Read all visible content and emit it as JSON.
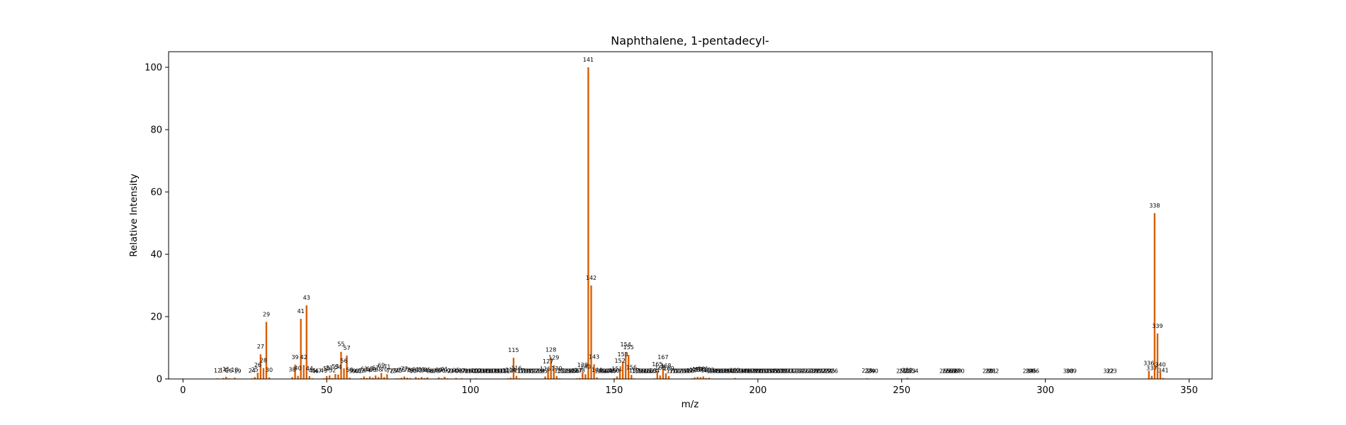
{
  "chart_data": {
    "type": "bar",
    "title": "Naphthalene, 1-pentadecyl-",
    "xlabel": "m/z",
    "ylabel": "Relative Intensity",
    "xlim": [
      -5,
      358
    ],
    "ylim": [
      0,
      105
    ],
    "xticks": [
      0,
      50,
      100,
      150,
      200,
      250,
      300,
      350
    ],
    "yticks": [
      0,
      20,
      40,
      60,
      80,
      100
    ],
    "bar_color": "#d95f02",
    "grid": false,
    "peaks": [
      {
        "x": 12,
        "y": 0.2
      },
      {
        "x": 14,
        "y": 0.3
      },
      {
        "x": 15,
        "y": 0.7
      },
      {
        "x": 16,
        "y": 0.2
      },
      {
        "x": 18,
        "y": 0.4
      },
      {
        "x": 19,
        "y": 0.1
      },
      {
        "x": 24,
        "y": 0.2
      },
      {
        "x": 25,
        "y": 0.6
      },
      {
        "x": 26,
        "y": 2.0
      },
      {
        "x": 27,
        "y": 7.9
      },
      {
        "x": 28,
        "y": 3.5
      },
      {
        "x": 29,
        "y": 18.3
      },
      {
        "x": 30,
        "y": 0.5
      },
      {
        "x": 38,
        "y": 0.6
      },
      {
        "x": 39,
        "y": 4.6
      },
      {
        "x": 40,
        "y": 1.0
      },
      {
        "x": 41,
        "y": 19.3
      },
      {
        "x": 42,
        "y": 4.5
      },
      {
        "x": 43,
        "y": 23.6
      },
      {
        "x": 44,
        "y": 0.9
      },
      {
        "x": 45,
        "y": 0.2
      },
      {
        "x": 46,
        "y": 0.1
      },
      {
        "x": 47,
        "y": 0.1
      },
      {
        "x": 49,
        "y": 0.2
      },
      {
        "x": 50,
        "y": 0.9
      },
      {
        "x": 51,
        "y": 1.1
      },
      {
        "x": 52,
        "y": 0.3
      },
      {
        "x": 53,
        "y": 1.6
      },
      {
        "x": 54,
        "y": 1.4
      },
      {
        "x": 55,
        "y": 8.7
      },
      {
        "x": 56,
        "y": 3.4
      },
      {
        "x": 57,
        "y": 7.5
      },
      {
        "x": 58,
        "y": 0.4
      },
      {
        "x": 59,
        "y": 0.1
      },
      {
        "x": 60,
        "y": 0.1
      },
      {
        "x": 61,
        "y": 0.1
      },
      {
        "x": 62,
        "y": 0.2
      },
      {
        "x": 63,
        "y": 0.8
      },
      {
        "x": 64,
        "y": 0.3
      },
      {
        "x": 65,
        "y": 0.8
      },
      {
        "x": 66,
        "y": 0.4
      },
      {
        "x": 67,
        "y": 1.1
      },
      {
        "x": 68,
        "y": 0.6
      },
      {
        "x": 69,
        "y": 1.9
      },
      {
        "x": 70,
        "y": 0.6
      },
      {
        "x": 71,
        "y": 1.5
      },
      {
        "x": 72,
        "y": 0.1
      },
      {
        "x": 73,
        "y": 0.1
      },
      {
        "x": 74,
        "y": 0.2
      },
      {
        "x": 75,
        "y": 0.2
      },
      {
        "x": 76,
        "y": 0.4
      },
      {
        "x": 77,
        "y": 0.8
      },
      {
        "x": 78,
        "y": 0.4
      },
      {
        "x": 79,
        "y": 0.3
      },
      {
        "x": 80,
        "y": 0.1
      },
      {
        "x": 81,
        "y": 0.6
      },
      {
        "x": 82,
        "y": 0.3
      },
      {
        "x": 83,
        "y": 0.6
      },
      {
        "x": 84,
        "y": 0.3
      },
      {
        "x": 85,
        "y": 0.5
      },
      {
        "x": 86,
        "y": 0.1
      },
      {
        "x": 87,
        "y": 0.1
      },
      {
        "x": 88,
        "y": 0.1
      },
      {
        "x": 89,
        "y": 0.5
      },
      {
        "x": 90,
        "y": 0.2
      },
      {
        "x": 91,
        "y": 0.7
      },
      {
        "x": 92,
        "y": 0.2
      },
      {
        "x": 93,
        "y": 0.1
      },
      {
        "x": 94,
        "y": 0.1
      },
      {
        "x": 95,
        "y": 0.3
      },
      {
        "x": 96,
        "y": 0.1
      },
      {
        "x": 97,
        "y": 0.2
      },
      {
        "x": 98,
        "y": 0.1
      },
      {
        "x": 99,
        "y": 0.1
      },
      {
        "x": 100,
        "y": 0.1
      },
      {
        "x": 101,
        "y": 0.1
      },
      {
        "x": 102,
        "y": 0.2
      },
      {
        "x": 103,
        "y": 0.1
      },
      {
        "x": 104,
        "y": 0.1
      },
      {
        "x": 105,
        "y": 0.1
      },
      {
        "x": 106,
        "y": 0.1
      },
      {
        "x": 107,
        "y": 0.1
      },
      {
        "x": 108,
        "y": 0.1
      },
      {
        "x": 109,
        "y": 0.1
      },
      {
        "x": 110,
        "y": 0.1
      },
      {
        "x": 111,
        "y": 0.1
      },
      {
        "x": 112,
        "y": 0.1
      },
      {
        "x": 113,
        "y": 0.2
      },
      {
        "x": 114,
        "y": 0.4
      },
      {
        "x": 115,
        "y": 6.8
      },
      {
        "x": 116,
        "y": 1.0
      },
      {
        "x": 117,
        "y": 0.2
      },
      {
        "x": 118,
        "y": 0.1
      },
      {
        "x": 119,
        "y": 0.1
      },
      {
        "x": 120,
        "y": 0.1
      },
      {
        "x": 121,
        "y": 0.1
      },
      {
        "x": 122,
        "y": 0.1
      },
      {
        "x": 123,
        "y": 0.1
      },
      {
        "x": 124,
        "y": 0.1
      },
      {
        "x": 125,
        "y": 0.1
      },
      {
        "x": 126,
        "y": 0.8
      },
      {
        "x": 127,
        "y": 3.2
      },
      {
        "x": 128,
        "y": 6.9
      },
      {
        "x": 129,
        "y": 4.4
      },
      {
        "x": 130,
        "y": 0.9
      },
      {
        "x": 131,
        "y": 0.2
      },
      {
        "x": 132,
        "y": 0.1
      },
      {
        "x": 133,
        "y": 0.1
      },
      {
        "x": 134,
        "y": 0.1
      },
      {
        "x": 135,
        "y": 0.1
      },
      {
        "x": 136,
        "y": 0.1
      },
      {
        "x": 137,
        "y": 0.2
      },
      {
        "x": 138,
        "y": 0.3
      },
      {
        "x": 139,
        "y": 2.1
      },
      {
        "x": 140,
        "y": 1.5
      },
      {
        "x": 141,
        "y": 100
      },
      {
        "x": 142,
        "y": 30
      },
      {
        "x": 143,
        "y": 4.7
      },
      {
        "x": 144,
        "y": 0.5
      },
      {
        "x": 145,
        "y": 0.1
      },
      {
        "x": 146,
        "y": 0.1
      },
      {
        "x": 147,
        "y": 0.1
      },
      {
        "x": 148,
        "y": 0.1
      },
      {
        "x": 149,
        "y": 0.1
      },
      {
        "x": 150,
        "y": 0.2
      },
      {
        "x": 151,
        "y": 0.8
      },
      {
        "x": 152,
        "y": 3.4
      },
      {
        "x": 153,
        "y": 5.5
      },
      {
        "x": 154,
        "y": 8.6
      },
      {
        "x": 155,
        "y": 7.7
      },
      {
        "x": 156,
        "y": 1.3
      },
      {
        "x": 157,
        "y": 0.2
      },
      {
        "x": 158,
        "y": 0.1
      },
      {
        "x": 159,
        "y": 0.1
      },
      {
        "x": 160,
        "y": 0.1
      },
      {
        "x": 161,
        "y": 0.1
      },
      {
        "x": 162,
        "y": 0.1
      },
      {
        "x": 163,
        "y": 0.1
      },
      {
        "x": 164,
        "y": 0.2
      },
      {
        "x": 165,
        "y": 2.3
      },
      {
        "x": 166,
        "y": 1.1
      },
      {
        "x": 167,
        "y": 4.6
      },
      {
        "x": 168,
        "y": 1.8
      },
      {
        "x": 169,
        "y": 0.9
      },
      {
        "x": 170,
        "y": 0.1
      },
      {
        "x": 171,
        "y": 0.1
      },
      {
        "x": 172,
        "y": 0.1
      },
      {
        "x": 173,
        "y": 0.1
      },
      {
        "x": 174,
        "y": 0.1
      },
      {
        "x": 175,
        "y": 0.1
      },
      {
        "x": 176,
        "y": 0.1
      },
      {
        "x": 177,
        "y": 0.2
      },
      {
        "x": 178,
        "y": 0.5
      },
      {
        "x": 179,
        "y": 0.7
      },
      {
        "x": 180,
        "y": 0.6
      },
      {
        "x": 181,
        "y": 0.8
      },
      {
        "x": 182,
        "y": 0.3
      },
      {
        "x": 183,
        "y": 0.4
      },
      {
        "x": 184,
        "y": 0.1
      },
      {
        "x": 185,
        "y": 0.1
      },
      {
        "x": 186,
        "y": 0.1
      },
      {
        "x": 187,
        "y": 0.1
      },
      {
        "x": 188,
        "y": 0.1
      },
      {
        "x": 189,
        "y": 0.1
      },
      {
        "x": 190,
        "y": 0.1
      },
      {
        "x": 191,
        "y": 0.1
      },
      {
        "x": 192,
        "y": 0.3
      },
      {
        "x": 193,
        "y": 0.1
      },
      {
        "x": 194,
        "y": 0.1
      },
      {
        "x": 195,
        "y": 0.1
      },
      {
        "x": 196,
        "y": 0.1
      },
      {
        "x": 197,
        "y": 0.1
      },
      {
        "x": 198,
        "y": 0.1
      },
      {
        "x": 199,
        "y": 0.1
      },
      {
        "x": 200,
        "y": 0.1
      },
      {
        "x": 201,
        "y": 0.1
      },
      {
        "x": 202,
        "y": 0.1
      },
      {
        "x": 203,
        "y": 0.1
      },
      {
        "x": 204,
        "y": 0.1
      },
      {
        "x": 205,
        "y": 0.1
      },
      {
        "x": 206,
        "y": 0.1
      },
      {
        "x": 207,
        "y": 0.1
      },
      {
        "x": 208,
        "y": 0.1
      },
      {
        "x": 209,
        "y": 0.1
      },
      {
        "x": 210,
        "y": 0.1
      },
      {
        "x": 211,
        "y": 0.1
      },
      {
        "x": 212,
        "y": 0.1
      },
      {
        "x": 213,
        "y": 0.1
      },
      {
        "x": 214,
        "y": 0.1
      },
      {
        "x": 215,
        "y": 0.1
      },
      {
        "x": 216,
        "y": 0.1
      },
      {
        "x": 217,
        "y": 0.1
      },
      {
        "x": 218,
        "y": 0.1
      },
      {
        "x": 219,
        "y": 0.1
      },
      {
        "x": 220,
        "y": 0.1
      },
      {
        "x": 221,
        "y": 0.1
      },
      {
        "x": 222,
        "y": 0.1
      },
      {
        "x": 223,
        "y": 0.1
      },
      {
        "x": 224,
        "y": 0.1
      },
      {
        "x": 225,
        "y": 0.1
      },
      {
        "x": 226,
        "y": 0.1
      },
      {
        "x": 238,
        "y": 0.2
      },
      {
        "x": 239,
        "y": 0.1
      },
      {
        "x": 240,
        "y": 0.1
      },
      {
        "x": 250,
        "y": 0.1
      },
      {
        "x": 251,
        "y": 0.1
      },
      {
        "x": 252,
        "y": 0.3
      },
      {
        "x": 253,
        "y": 0.1
      },
      {
        "x": 254,
        "y": 0.1
      },
      {
        "x": 265,
        "y": 0.1
      },
      {
        "x": 266,
        "y": 0.1
      },
      {
        "x": 267,
        "y": 0.1
      },
      {
        "x": 268,
        "y": 0.1
      },
      {
        "x": 269,
        "y": 0.1
      },
      {
        "x": 270,
        "y": 0.1
      },
      {
        "x": 280,
        "y": 0.1
      },
      {
        "x": 281,
        "y": 0.1
      },
      {
        "x": 282,
        "y": 0.1
      },
      {
        "x": 294,
        "y": 0.1
      },
      {
        "x": 295,
        "y": 0.1
      },
      {
        "x": 296,
        "y": 0.1
      },
      {
        "x": 308,
        "y": 0.1
      },
      {
        "x": 309,
        "y": 0.1
      },
      {
        "x": 322,
        "y": 0.1
      },
      {
        "x": 323,
        "y": 0.1
      },
      {
        "x": 336,
        "y": 2.6
      },
      {
        "x": 337,
        "y": 1.0
      },
      {
        "x": 338,
        "y": 53.2
      },
      {
        "x": 339,
        "y": 14.6
      },
      {
        "x": 340,
        "y": 2.2
      },
      {
        "x": 341,
        "y": 0.3
      }
    ]
  }
}
